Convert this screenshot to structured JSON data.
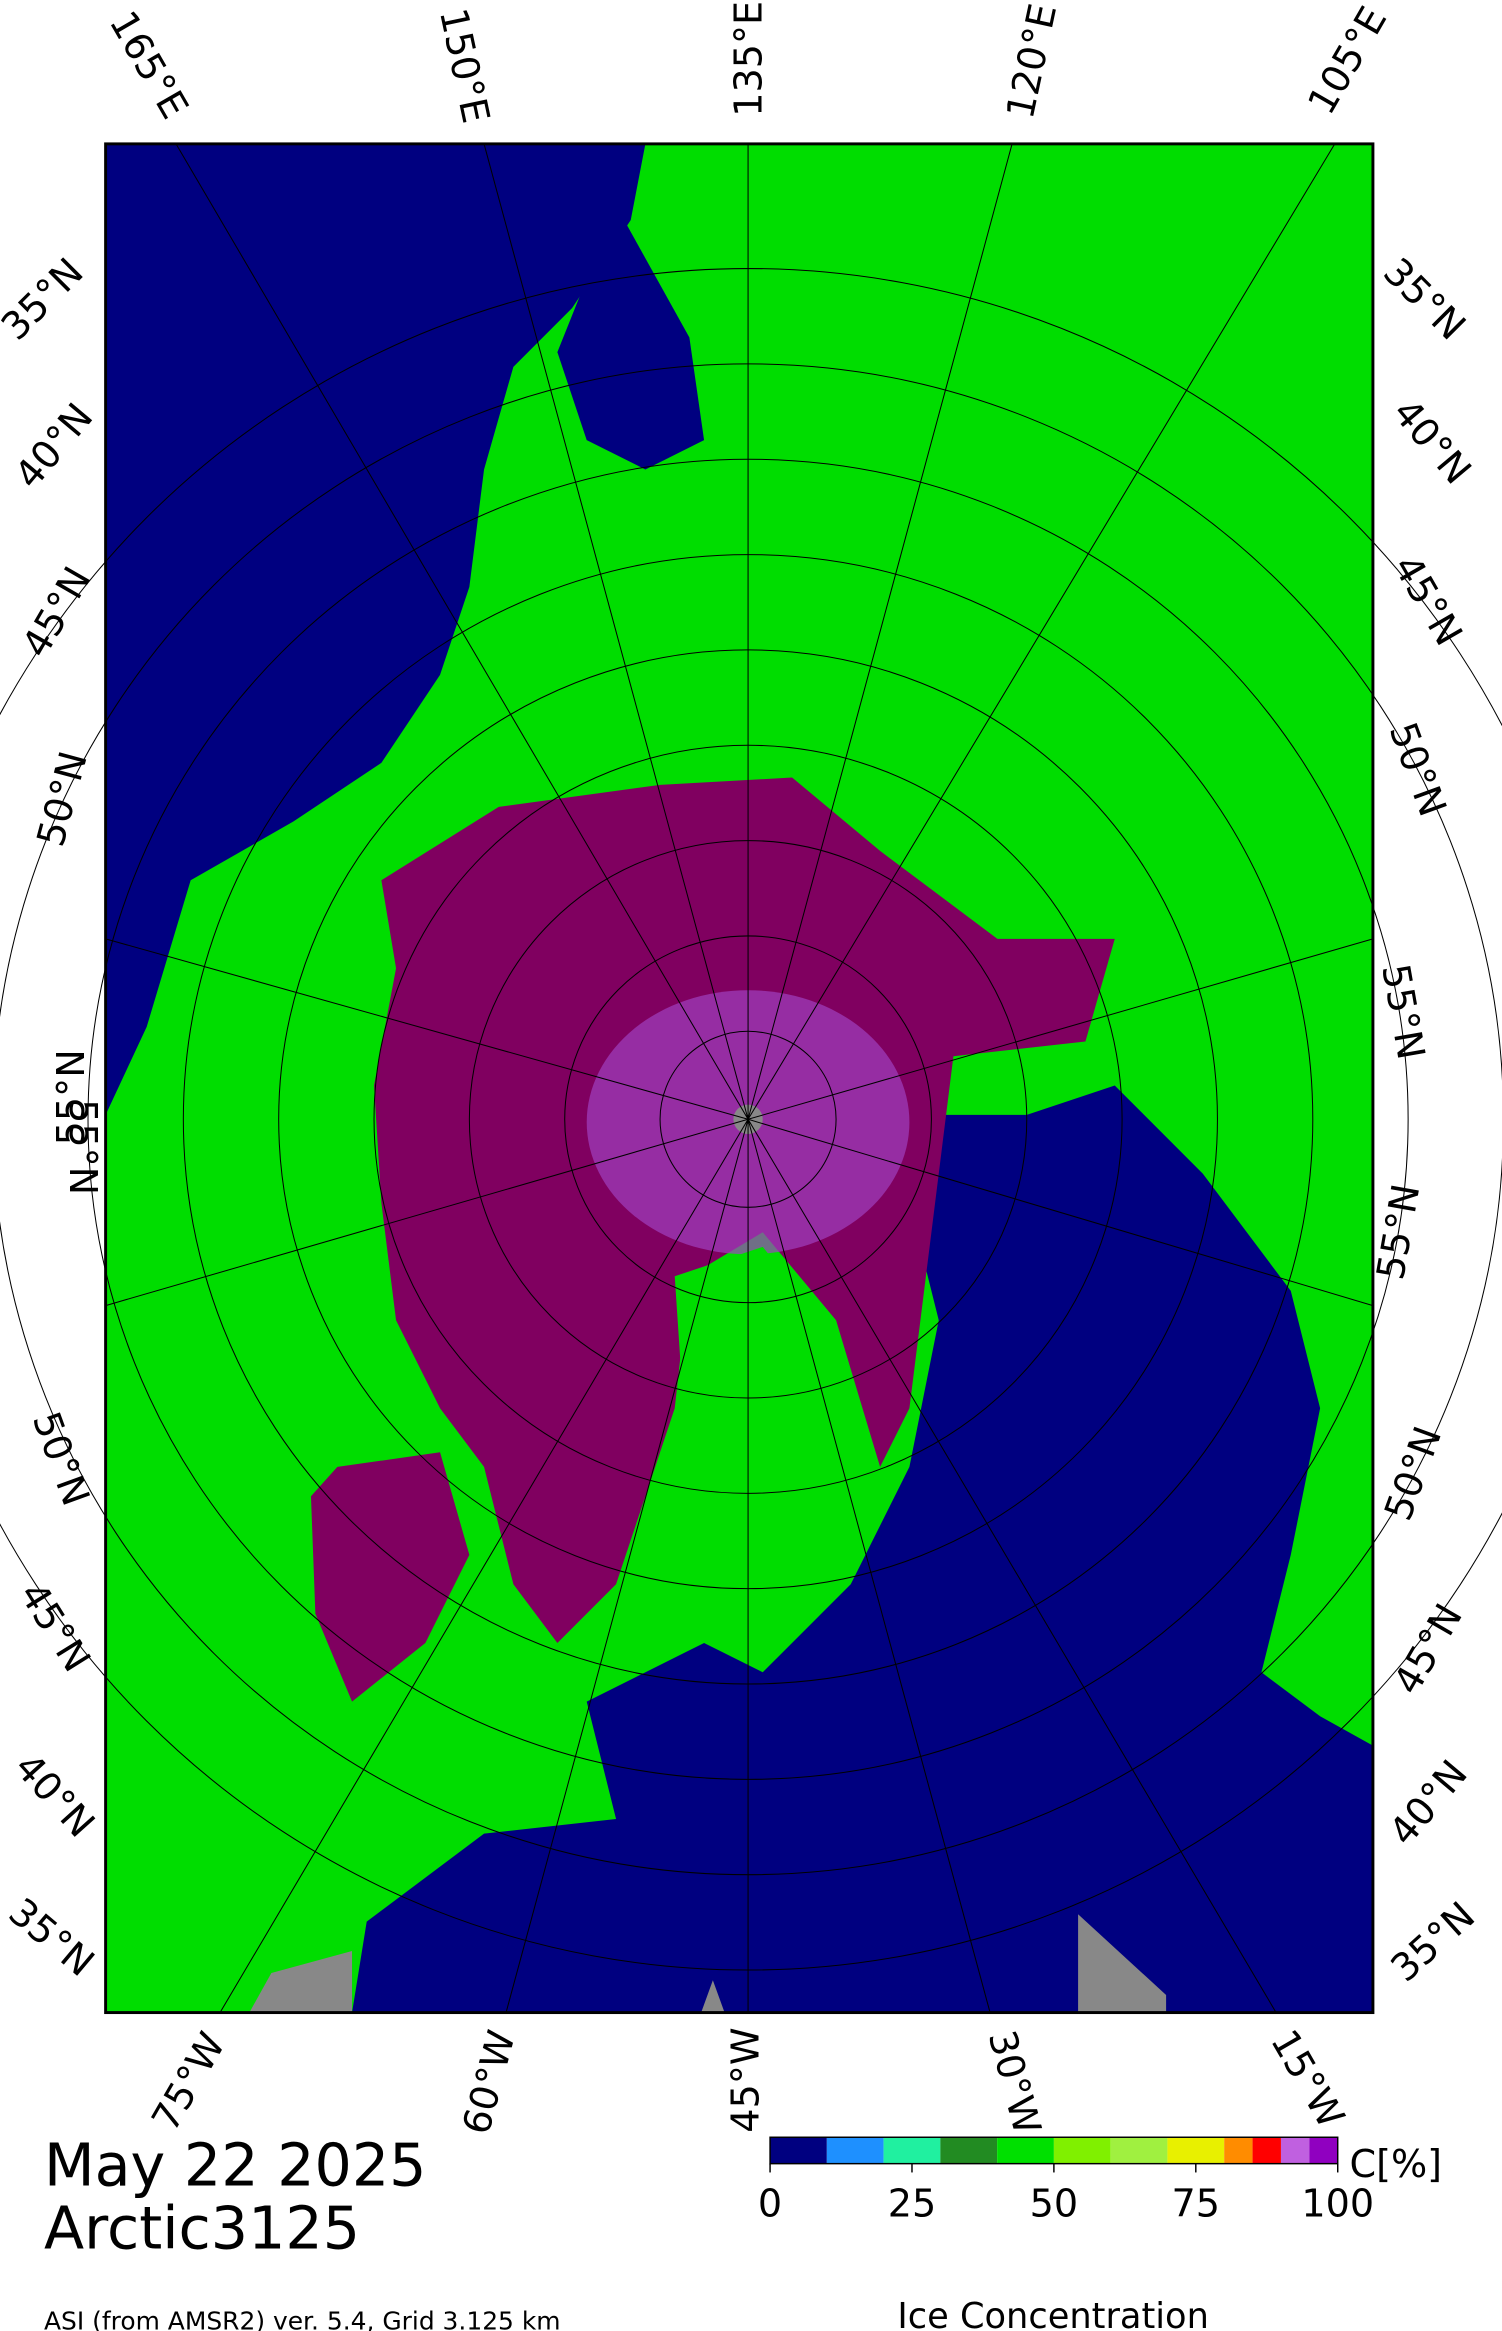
{
  "map": {
    "top_labels": [
      "165°E",
      "150°E",
      "135°E",
      "120°E",
      "105°E"
    ],
    "bottom_labels": [
      "75°W",
      "60°W",
      "45°W",
      "30°W",
      "15°W"
    ],
    "left_labels": [
      "35°N",
      "40°N",
      "45°N",
      "50°N",
      "55°N",
      "55°N",
      "50°N",
      "45°N",
      "40°N",
      "35°N"
    ],
    "right_labels": [
      "35°N",
      "40°N",
      "45°N",
      "50°N",
      "55°N",
      "55°N",
      "50°N",
      "45°N",
      "40°N",
      "35°N"
    ]
  },
  "footer": {
    "date": "May 22 2025",
    "region": "Arctic3125",
    "credit": "ASI (from AMSR2) ver. 5.4,  Grid 3.125 km"
  },
  "colorbar": {
    "title": "Ice Concentration",
    "unit": "C[%]",
    "xlim": [
      0,
      100
    ],
    "xticks": [
      0,
      25,
      50,
      75,
      100
    ],
    "bounds": [
      0,
      10,
      20,
      30,
      40,
      50,
      60,
      70,
      80,
      85,
      90,
      95,
      100
    ],
    "colors": [
      "#000080",
      "#1e90ff",
      "#20f0a0",
      "#228b22",
      "#00e000",
      "#80f000",
      "#a0f040",
      "#e8f000",
      "#ff8c00",
      "#ff0000",
      "#c060e0",
      "#9000c0"
    ]
  }
}
